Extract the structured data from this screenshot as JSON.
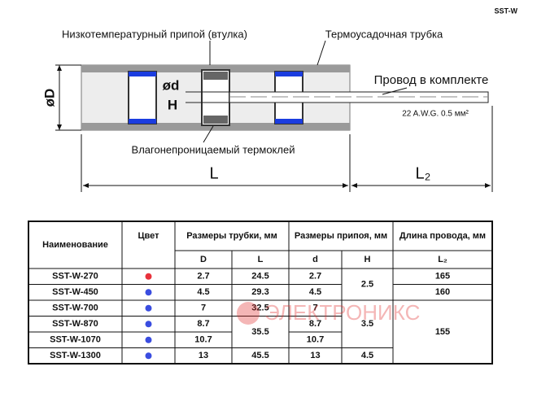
{
  "corner_label": "SST-W",
  "diagram": {
    "solder_label": "Низкотемпературный припой (втулка)",
    "tube_label": "Термоусадочная трубка",
    "wire_label": "Провод в комплекте",
    "wire_spec": "22 A.W.G.  0.5 мм²",
    "glue_label": "Влагонепроницаемый термоклей",
    "outer_diameter": "øD",
    "solder_diameter": "ød",
    "solder_height": "H",
    "length": "L",
    "wire_length": "L₂"
  },
  "table": {
    "headers": [
      "Наименование",
      "Цвет",
      "Размеры трубки, мм",
      "Размеры припоя, мм",
      "Длина провода, мм"
    ],
    "subheaders": [
      "D",
      "L",
      "d",
      "H",
      "L₂"
    ],
    "rows": [
      {
        "name": "SST-W-270",
        "color": "#e8323c",
        "D": "2.7",
        "L": "24.5",
        "d": "2.7",
        "H": "2.5",
        "L2": "165"
      },
      {
        "name": "SST-W-450",
        "color": "#3a4de0",
        "D": "4.5",
        "L": "29.3",
        "d": "4.5",
        "H": null,
        "L2": "160"
      },
      {
        "name": "SST-W-700",
        "color": "#3a4de0",
        "D": "7",
        "L": "32.5",
        "d": "7",
        "H": "3.5",
        "L2": "155"
      },
      {
        "name": "SST-W-870",
        "color": "#3a4de0",
        "D": "8.7",
        "L": "35.5",
        "d": "8.7",
        "H": null,
        "L2": null
      },
      {
        "name": "SST-W-1070",
        "color": "#3a4de0",
        "D": "10.7",
        "L": null,
        "d": "10.7",
        "H": null,
        "L2": null
      },
      {
        "name": "SST-W-1300",
        "color": "#3a4de0",
        "D": "13",
        "L": "45.5",
        "d": "13",
        "H": "4.5",
        "L2": null
      }
    ]
  },
  "watermark": "ЭЛЕКТРОНИКС"
}
